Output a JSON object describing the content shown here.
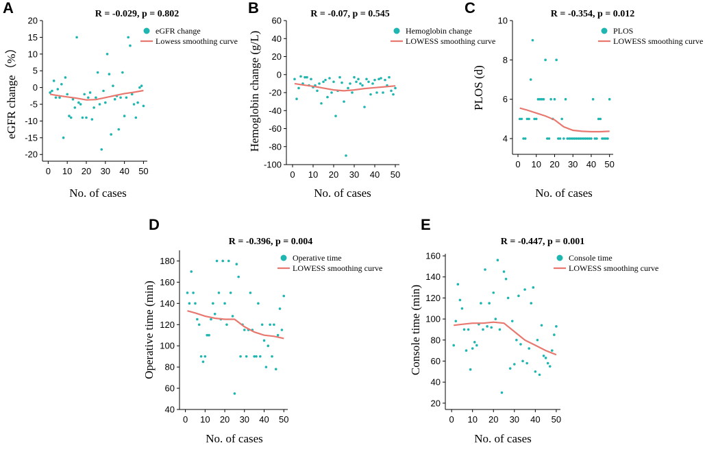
{
  "chart_data": [
    {
      "id": "A",
      "panel_label": "A",
      "type": "scatter",
      "title": "R = -0.029, p = 0.802",
      "xlabel": "No. of cases",
      "ylabel": "eGFR change（%）",
      "xlim": [
        -3,
        52
      ],
      "ylim": [
        -22,
        20
      ],
      "xticks": [
        0,
        10,
        20,
        30,
        40,
        50
      ],
      "yticks": [
        -20,
        -15,
        -10,
        -5,
        0,
        5,
        10,
        15,
        20
      ],
      "legend": {
        "points": "eGFR change",
        "curve": "Lowess  smoothing curve"
      },
      "points": {
        "x": [
          1,
          2,
          3,
          4,
          5,
          6,
          7,
          8,
          9,
          10,
          11,
          12,
          13,
          14,
          15,
          16,
          17,
          18,
          19,
          20,
          21,
          22,
          23,
          24,
          25,
          26,
          27,
          28,
          29,
          30,
          31,
          32,
          33,
          34,
          35,
          36,
          37,
          38,
          39,
          40,
          41,
          42,
          43,
          44,
          45,
          46,
          47,
          48,
          49,
          50
        ],
        "y": [
          -1.5,
          -1,
          2,
          -3,
          -0.5,
          -3,
          1,
          -15,
          3,
          -2,
          -8.5,
          -9,
          -3.5,
          -6,
          15,
          -4.5,
          -5,
          -9,
          -2,
          -9,
          -3,
          -1.5,
          -9.5,
          -6,
          -3,
          4.5,
          -5,
          -18.5,
          -1,
          -4.5,
          10,
          4,
          -14,
          0.5,
          -3.5,
          -2.5,
          -12.5,
          -3,
          4.5,
          -8.5,
          -3,
          15,
          12.5,
          -2,
          -5,
          -9,
          -4.5,
          0,
          0.5,
          -5.5
        ]
      },
      "curve": {
        "x": [
          1,
          5,
          10,
          15,
          20,
          25,
          30,
          35,
          40,
          45,
          50
        ],
        "y": [
          -2,
          -2.4,
          -2.8,
          -3.2,
          -3.7,
          -3.6,
          -3,
          -2.4,
          -1.8,
          -1.4,
          -0.9
        ]
      }
    },
    {
      "id": "B",
      "panel_label": "B",
      "type": "scatter",
      "title": "R = -0.07, p = 0.545",
      "xlabel": "No. of cases",
      "ylabel": "Hemoglobin change (g/L)",
      "xlim": [
        -3,
        52
      ],
      "ylim": [
        -100,
        60
      ],
      "xticks": [
        0,
        10,
        20,
        30,
        40,
        50
      ],
      "yticks": [
        -100,
        -80,
        -60,
        -40,
        -20,
        0,
        20,
        40,
        60
      ],
      "legend": {
        "points": "Hemoglobin change",
        "curve": "LOWESS smoothing curve"
      },
      "points": {
        "x": [
          1,
          2,
          3,
          4,
          5,
          6,
          7,
          8,
          9,
          10,
          11,
          12,
          13,
          14,
          15,
          16,
          17,
          18,
          19,
          20,
          21,
          22,
          23,
          24,
          25,
          26,
          27,
          28,
          29,
          30,
          31,
          32,
          33,
          34,
          35,
          36,
          37,
          38,
          39,
          40,
          41,
          42,
          43,
          44,
          45,
          46,
          47,
          48,
          49,
          50
        ],
        "y": [
          -5,
          -27,
          -15,
          -2,
          -10,
          -3,
          -3,
          -12,
          -5,
          -14,
          -12,
          -18,
          -10,
          -32,
          -8,
          -6,
          -25,
          -4,
          -20,
          -8,
          -46,
          -18,
          -3,
          -9,
          -30,
          -90,
          -15,
          -10,
          -20,
          -3,
          -8,
          -5,
          -10,
          -12,
          -36,
          -5,
          -8,
          -22,
          -10,
          -6,
          -20,
          -5,
          -4,
          -20,
          -6,
          -12,
          -3,
          -18,
          -22,
          -15
        ]
      },
      "curve": {
        "x": [
          1,
          5,
          10,
          15,
          20,
          25,
          30,
          35,
          40,
          45,
          50
        ],
        "y": [
          -10,
          -11.5,
          -13,
          -15,
          -17,
          -18,
          -17,
          -15.5,
          -14.5,
          -13.5,
          -12.5
        ]
      }
    },
    {
      "id": "C",
      "panel_label": "C",
      "type": "scatter",
      "title": "R = -0.354, p = 0.012",
      "xlabel": "No. of cases",
      "ylabel": "PLOS (d)",
      "xlim": [
        -3,
        52
      ],
      "ylim": [
        3.2,
        10
      ],
      "xticks": [
        0,
        10,
        20,
        30,
        40,
        50
      ],
      "yticks": [
        4,
        6,
        8,
        10
      ],
      "legend": {
        "points": "PLOS",
        "curve": "LOWESS smoothing curve"
      },
      "points": {
        "x": [
          1,
          2,
          3,
          4,
          5,
          6,
          7,
          8,
          9,
          10,
          11,
          12,
          13,
          14,
          15,
          16,
          17,
          18,
          19,
          20,
          21,
          22,
          23,
          24,
          25,
          26,
          27,
          28,
          29,
          30,
          31,
          32,
          33,
          34,
          35,
          36,
          37,
          38,
          39,
          40,
          41,
          42,
          43,
          44,
          45,
          46,
          47,
          48,
          49,
          50
        ],
        "y": [
          5,
          5,
          4,
          4,
          5,
          5,
          7,
          9,
          5,
          5,
          6,
          6,
          6,
          6,
          8,
          4,
          4,
          6,
          5,
          6,
          8,
          4,
          4,
          5,
          4,
          6,
          4,
          4,
          4,
          4,
          4,
          4,
          4,
          4,
          4,
          4,
          4,
          4,
          4,
          4,
          6,
          4,
          4,
          5,
          5,
          4,
          4,
          4,
          4,
          6
        ]
      },
      "curve": {
        "x": [
          1,
          5,
          10,
          15,
          20,
          25,
          30,
          35,
          40,
          45,
          50
        ],
        "y": [
          5.55,
          5.45,
          5.3,
          5.15,
          4.95,
          4.6,
          4.42,
          4.37,
          4.35,
          4.35,
          4.37
        ]
      }
    },
    {
      "id": "D",
      "panel_label": "D",
      "type": "scatter",
      "title": "R = -0.396, p = 0.004",
      "xlabel": "No. of cases",
      "ylabel": "Operative time (min)",
      "xlim": [
        -3,
        52
      ],
      "ylim": [
        40,
        190
      ],
      "xticks": [
        0,
        10,
        20,
        30,
        40,
        50
      ],
      "yticks": [
        40,
        60,
        80,
        100,
        120,
        140,
        160,
        180
      ],
      "legend": {
        "points": "Operative time",
        "curve": "LOWESS smoothing curve"
      },
      "points": {
        "x": [
          1,
          2,
          3,
          4,
          5,
          6,
          7,
          8,
          9,
          10,
          11,
          12,
          13,
          14,
          15,
          16,
          17,
          18,
          19,
          20,
          21,
          22,
          23,
          24,
          25,
          26,
          27,
          28,
          29,
          30,
          31,
          32,
          33,
          34,
          35,
          36,
          37,
          38,
          39,
          40,
          41,
          42,
          43,
          44,
          45,
          46,
          47,
          48,
          49,
          50
        ],
        "y": [
          150,
          140,
          170,
          150,
          140,
          125,
          120,
          90,
          85,
          90,
          110,
          110,
          125,
          140,
          130,
          180,
          150,
          125,
          180,
          140,
          120,
          180,
          150,
          128,
          55,
          177,
          165,
          90,
          120,
          115,
          90,
          115,
          150,
          115,
          90,
          90,
          140,
          90,
          120,
          105,
          80,
          100,
          120,
          90,
          120,
          78,
          110,
          135,
          115,
          147
        ]
      },
      "curve": {
        "x": [
          1,
          5,
          10,
          15,
          20,
          25,
          30,
          35,
          40,
          45,
          50
        ],
        "y": [
          133,
          131,
          128,
          126,
          125,
          125,
          118,
          113,
          110,
          109,
          107
        ]
      }
    },
    {
      "id": "E",
      "panel_label": "E",
      "type": "scatter",
      "title": "R = -0.447, p = 0.001",
      "xlabel": "No. of cases",
      "ylabel": "Console time (min)",
      "xlim": [
        -3,
        52
      ],
      "ylim": [
        14,
        162
      ],
      "xticks": [
        0,
        10,
        20,
        30,
        40,
        50
      ],
      "yticks": [
        20,
        40,
        60,
        80,
        100,
        120,
        140,
        160
      ],
      "legend": {
        "points": "Console time",
        "curve": "LOWESS  smoothing curve"
      },
      "points": {
        "x": [
          1,
          2,
          3,
          4,
          5,
          6,
          7,
          8,
          9,
          10,
          11,
          12,
          13,
          14,
          15,
          16,
          17,
          18,
          19,
          20,
          21,
          22,
          23,
          24,
          25,
          26,
          27,
          28,
          29,
          30,
          31,
          32,
          33,
          34,
          35,
          36,
          37,
          38,
          39,
          40,
          41,
          42,
          43,
          44,
          45,
          46,
          47,
          48,
          49,
          50
        ],
        "y": [
          75,
          98,
          133,
          118,
          110,
          90,
          70,
          90,
          52,
          72,
          78,
          75,
          95,
          115,
          90,
          147,
          93,
          115,
          92,
          125,
          100,
          156,
          90,
          30,
          145,
          138,
          120,
          53,
          98,
          57,
          80,
          122,
          76,
          60,
          128,
          58,
          72,
          115,
          130,
          50,
          80,
          47,
          94,
          65,
          63,
          58,
          55,
          70,
          85,
          93
        ]
      },
      "curve": {
        "x": [
          1,
          5,
          10,
          15,
          20,
          25,
          30,
          35,
          40,
          45,
          50
        ],
        "y": [
          94,
          95,
          96,
          96,
          97,
          96,
          88,
          80,
          75,
          70,
          66
        ]
      }
    }
  ]
}
